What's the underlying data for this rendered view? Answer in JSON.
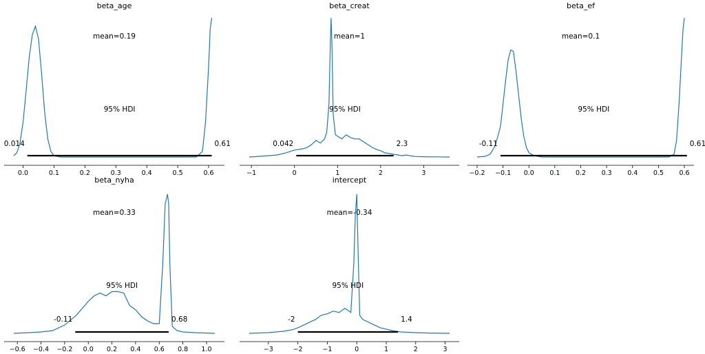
{
  "chart_data": [
    {
      "type": "line",
      "title": "beta_age",
      "mean_label": "mean=0.19",
      "hdi_label": "95% HDI",
      "hdi": [
        0.014,
        0.61
      ],
      "hdi_low_label": "0.014",
      "hdi_high_label": "0.61",
      "xlim": [
        -0.03,
        0.62
      ],
      "ticks": [
        0.0,
        0.1,
        0.2,
        0.3,
        0.4,
        0.5,
        0.6
      ],
      "tick_labels": [
        "0.0",
        "0.1",
        "0.2",
        "0.3",
        "0.4",
        "0.5",
        "0.6"
      ],
      "curve": {
        "x": [
          -0.03,
          -0.02,
          -0.01,
          0.0,
          0.01,
          0.02,
          0.03,
          0.04,
          0.05,
          0.06,
          0.07,
          0.08,
          0.09,
          0.1,
          0.12,
          0.2,
          0.3,
          0.4,
          0.5,
          0.56,
          0.58,
          0.59,
          0.6,
          0.605,
          0.61
        ],
        "y": [
          0.01,
          0.03,
          0.1,
          0.25,
          0.48,
          0.72,
          0.88,
          0.94,
          0.85,
          0.6,
          0.32,
          0.13,
          0.04,
          0.01,
          0.0,
          0.0,
          0.0,
          0.0,
          0.0,
          0.0,
          0.04,
          0.25,
          0.65,
          0.92,
          1.0
        ]
      },
      "grid": false,
      "legend": "none"
    },
    {
      "type": "line",
      "title": "beta_creat",
      "mean_label": "mean=1",
      "hdi_label": "95% HDI",
      "hdi": [
        0.042,
        2.3
      ],
      "hdi_low_label": "0.042",
      "hdi_high_label": "2.3",
      "xlim": [
        -1.05,
        3.6
      ],
      "ticks": [
        -1,
        0,
        1,
        2,
        3
      ],
      "tick_labels": [
        "−1",
        "0",
        "1",
        "2",
        "3"
      ],
      "curve": {
        "x": [
          -1.05,
          -0.8,
          -0.6,
          -0.4,
          -0.2,
          0.0,
          0.2,
          0.3,
          0.4,
          0.5,
          0.6,
          0.7,
          0.75,
          0.8,
          0.83,
          0.85,
          0.87,
          0.9,
          0.95,
          1.0,
          1.1,
          1.2,
          1.3,
          1.4,
          1.5,
          1.6,
          1.7,
          1.8,
          1.9,
          2.0,
          2.1,
          2.2,
          2.3,
          2.4,
          2.5,
          2.6,
          2.7,
          2.8,
          3.0,
          3.3,
          3.6
        ],
        "y": [
          0.0,
          0.005,
          0.01,
          0.015,
          0.03,
          0.05,
          0.06,
          0.07,
          0.09,
          0.12,
          0.1,
          0.13,
          0.18,
          0.38,
          0.8,
          1.0,
          0.8,
          0.3,
          0.16,
          0.15,
          0.13,
          0.16,
          0.14,
          0.13,
          0.13,
          0.11,
          0.09,
          0.07,
          0.055,
          0.045,
          0.03,
          0.025,
          0.02,
          0.015,
          0.01,
          0.015,
          0.008,
          0.004,
          0.002,
          0.001,
          0.0
        ]
      },
      "grid": false,
      "legend": "none"
    },
    {
      "type": "line",
      "title": "beta_ef",
      "mean_label": "mean=0.1",
      "hdi_label": "95% HDI",
      "hdi": [
        -0.11,
        0.61
      ],
      "hdi_low_label": "-0.11",
      "hdi_high_label": "0.61",
      "xlim": [
        -0.2,
        0.6
      ],
      "ticks": [
        -0.2,
        -0.1,
        0.0,
        0.1,
        0.2,
        0.3,
        0.4,
        0.5,
        0.6
      ],
      "tick_labels": [
        "−0.2",
        "−0.1",
        "0.0",
        "0.1",
        "0.2",
        "0.3",
        "0.4",
        "0.5",
        "0.6"
      ],
      "curve": {
        "x": [
          -0.2,
          -0.17,
          -0.15,
          -0.13,
          -0.11,
          -0.1,
          -0.09,
          -0.08,
          -0.07,
          -0.06,
          -0.05,
          -0.04,
          -0.03,
          -0.02,
          -0.01,
          0.0,
          0.02,
          0.05,
          0.2,
          0.4,
          0.54,
          0.56,
          0.57,
          0.58,
          0.59,
          0.595,
          0.6
        ],
        "y": [
          0.0,
          0.005,
          0.02,
          0.08,
          0.22,
          0.38,
          0.55,
          0.7,
          0.77,
          0.76,
          0.62,
          0.45,
          0.28,
          0.15,
          0.07,
          0.03,
          0.01,
          0.0,
          0.0,
          0.0,
          0.0,
          0.02,
          0.12,
          0.4,
          0.75,
          0.92,
          1.0
        ]
      },
      "grid": false,
      "legend": "none"
    },
    {
      "type": "line",
      "title": "beta_nyha",
      "mean_label": "mean=0.33",
      "hdi_label": "95% HDI",
      "hdi": [
        -0.11,
        0.68
      ],
      "hdi_low_label": "-0.11",
      "hdi_high_label": "0.68",
      "xlim": [
        -0.63,
        1.07
      ],
      "ticks": [
        -0.6,
        -0.4,
        -0.2,
        0.0,
        0.2,
        0.4,
        0.6,
        0.8,
        1.0
      ],
      "tick_labels": [
        "−0.6",
        "−0.4",
        "−0.2",
        "0.0",
        "0.2",
        "0.4",
        "0.6",
        "0.8",
        "1.0"
      ],
      "curve": {
        "x": [
          -0.63,
          -0.5,
          -0.4,
          -0.3,
          -0.2,
          -0.1,
          0.0,
          0.05,
          0.1,
          0.15,
          0.2,
          0.25,
          0.3,
          0.35,
          0.4,
          0.45,
          0.5,
          0.55,
          0.6,
          0.63,
          0.65,
          0.67,
          0.68,
          0.69,
          0.71,
          0.75,
          0.8,
          0.9,
          1.07
        ],
        "y": [
          0.0,
          0.005,
          0.01,
          0.02,
          0.06,
          0.13,
          0.23,
          0.27,
          0.29,
          0.27,
          0.3,
          0.3,
          0.29,
          0.2,
          0.17,
          0.12,
          0.09,
          0.07,
          0.07,
          0.5,
          0.93,
          1.0,
          0.93,
          0.5,
          0.05,
          0.02,
          0.01,
          0.005,
          0.0
        ]
      },
      "grid": false,
      "legend": "none"
    },
    {
      "type": "line",
      "title": "intercept",
      "mean_label": "mean=-0.34",
      "hdi_label": "95% HDI",
      "hdi": [
        -2,
        1.4
      ],
      "hdi_low_label": "-2",
      "hdi_high_label": "1.4",
      "xlim": [
        -3.65,
        3.15
      ],
      "ticks": [
        -3,
        -2,
        -1,
        0,
        1,
        2,
        3
      ],
      "tick_labels": [
        "−3",
        "−2",
        "−1",
        "0",
        "1",
        "2",
        "3"
      ],
      "curve": {
        "x": [
          -3.65,
          -3.0,
          -2.5,
          -2.2,
          -2.0,
          -1.8,
          -1.6,
          -1.4,
          -1.2,
          -1.0,
          -0.8,
          -0.6,
          -0.4,
          -0.2,
          -0.1,
          -0.05,
          0.0,
          0.05,
          0.1,
          0.2,
          0.4,
          0.6,
          0.8,
          1.0,
          1.2,
          1.5,
          2.0,
          2.5,
          3.15
        ],
        "y": [
          0.0,
          0.005,
          0.015,
          0.025,
          0.04,
          0.06,
          0.08,
          0.1,
          0.13,
          0.14,
          0.16,
          0.15,
          0.18,
          0.15,
          0.5,
          0.85,
          1.0,
          0.55,
          0.13,
          0.1,
          0.08,
          0.06,
          0.04,
          0.03,
          0.02,
          0.01,
          0.005,
          0.002,
          0.0
        ]
      },
      "grid": false,
      "legend": "none"
    }
  ]
}
